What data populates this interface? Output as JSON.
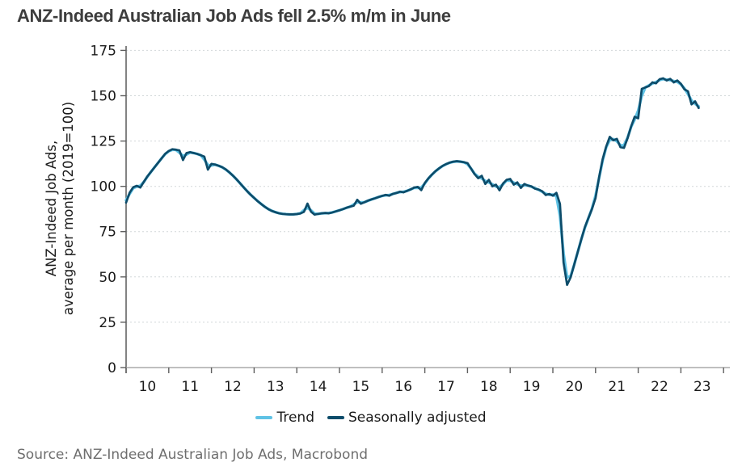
{
  "title": "ANZ-Indeed Australian Job Ads fell 2.5% m/m in June",
  "source": "Source: ANZ-Indeed Australian Job Ads, Macrobond",
  "legend": {
    "trend_label": "Trend",
    "seasonally_adjusted_label": "Seasonally adjusted"
  },
  "colors": {
    "trend": "#5fc2e5",
    "seasonally_adjusted": "#0d4c6a",
    "title_text": "#3d3d3d",
    "tick_text": "#1a1a1a",
    "source_text": "#6e6e6e",
    "gridline": "#d2d7d9"
  },
  "chart_data": {
    "type": "line",
    "title": "ANZ-Indeed Australian Job Ads fell 2.5% m/m in June",
    "ylabel_lines": [
      "ANZ-Indeed Job Ads,",
      "average per month (2019=100)"
    ],
    "xlabel": "",
    "x_unit": "month",
    "x_start_label": "Jan 2010",
    "x_end_label": "Jun 2023",
    "x_tick_labels": [
      "10",
      "11",
      "12",
      "13",
      "14",
      "15",
      "16",
      "17",
      "18",
      "19",
      "20",
      "21",
      "22",
      "23"
    ],
    "y_ticks": [
      0,
      25,
      50,
      75,
      100,
      125,
      150,
      175
    ],
    "ylim": [
      0,
      178
    ],
    "grid": "horizontal-dotted",
    "legend_position": "bottom-center",
    "series": [
      {
        "name": "Trend",
        "color": "#5fc2e5",
        "derivation": "smoothed seasonally adjusted (weighted 3-month centered moving average)"
      },
      {
        "name": "Seasonally adjusted",
        "color": "#0d4c6a",
        "values": [
          91.0,
          96.5,
          99.5,
          100.3,
          99.3,
          102.5,
          105.5,
          108.0,
          110.5,
          113.0,
          115.5,
          118.0,
          119.5,
          120.5,
          120.2,
          119.8,
          114.5,
          118.4,
          118.9,
          118.4,
          117.9,
          117.2,
          116.4,
          109.2,
          112.4,
          112.0,
          111.4,
          110.6,
          109.4,
          107.8,
          106.0,
          104.0,
          101.8,
          99.6,
          97.4,
          95.4,
          93.6,
          91.8,
          90.2,
          88.7,
          87.4,
          86.4,
          85.7,
          85.1,
          84.8,
          84.6,
          84.5,
          84.5,
          84.7,
          85.0,
          85.9,
          90.5,
          86.0,
          84.4,
          84.8,
          85.1,
          85.3,
          85.1,
          85.6,
          86.2,
          86.8,
          87.4,
          88.2,
          88.8,
          89.3,
          92.6,
          90.4,
          91.2,
          92.1,
          92.8,
          93.4,
          94.1,
          94.7,
          95.3,
          94.8,
          95.9,
          96.3,
          97.1,
          96.7,
          97.5,
          98.3,
          99.3,
          99.7,
          97.9,
          101.9,
          104.4,
          106.5,
          108.4,
          109.9,
          111.3,
          112.3,
          113.1,
          113.6,
          113.9,
          113.6,
          113.3,
          112.8,
          109.8,
          106.7,
          104.5,
          105.8,
          101.3,
          103.6,
          100.0,
          100.9,
          97.8,
          101.6,
          103.6,
          104.1,
          100.9,
          102.2,
          99.1,
          101.3,
          100.4,
          100.0,
          98.7,
          98.2,
          97.3,
          95.2,
          95.8,
          94.8,
          96.4,
          90.3,
          58.0,
          45.6,
          49.8,
          56.8,
          63.8,
          70.8,
          77.5,
          82.5,
          87.5,
          93.5,
          105.0,
          115.0,
          122.0,
          127.3,
          125.4,
          126.2,
          121.6,
          121.2,
          126.5,
          133.0,
          138.4,
          137.5,
          153.8,
          154.6,
          155.3,
          157.4,
          156.8,
          159.1,
          159.6,
          158.4,
          159.3,
          157.3,
          158.4,
          156.6,
          153.5,
          152.4,
          145.2,
          146.9,
          143.2
        ]
      }
    ]
  }
}
